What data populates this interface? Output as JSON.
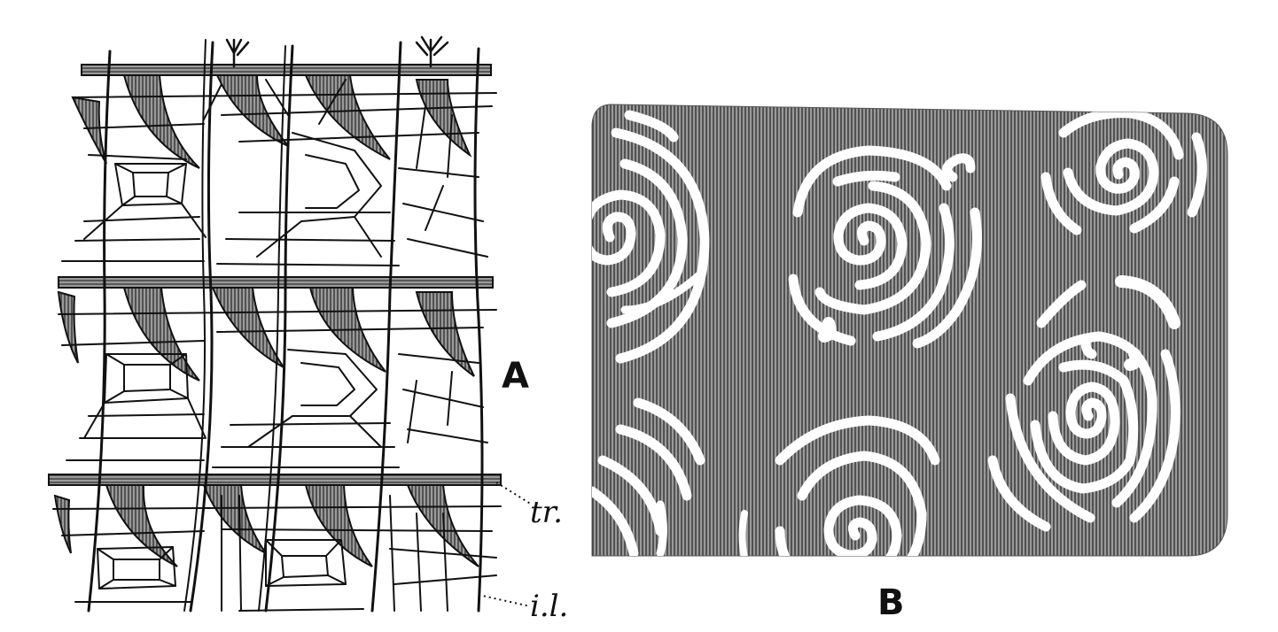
{
  "figure": {
    "panel_a_label": "A",
    "panel_b_label": "B",
    "annotations": [
      {
        "id": "tr",
        "text": "tr."
      },
      {
        "id": "il",
        "text": "i.l."
      }
    ]
  },
  "colors": {
    "ink": "#111111",
    "shade": "#8a8a8a",
    "paper": "#ffffff"
  }
}
